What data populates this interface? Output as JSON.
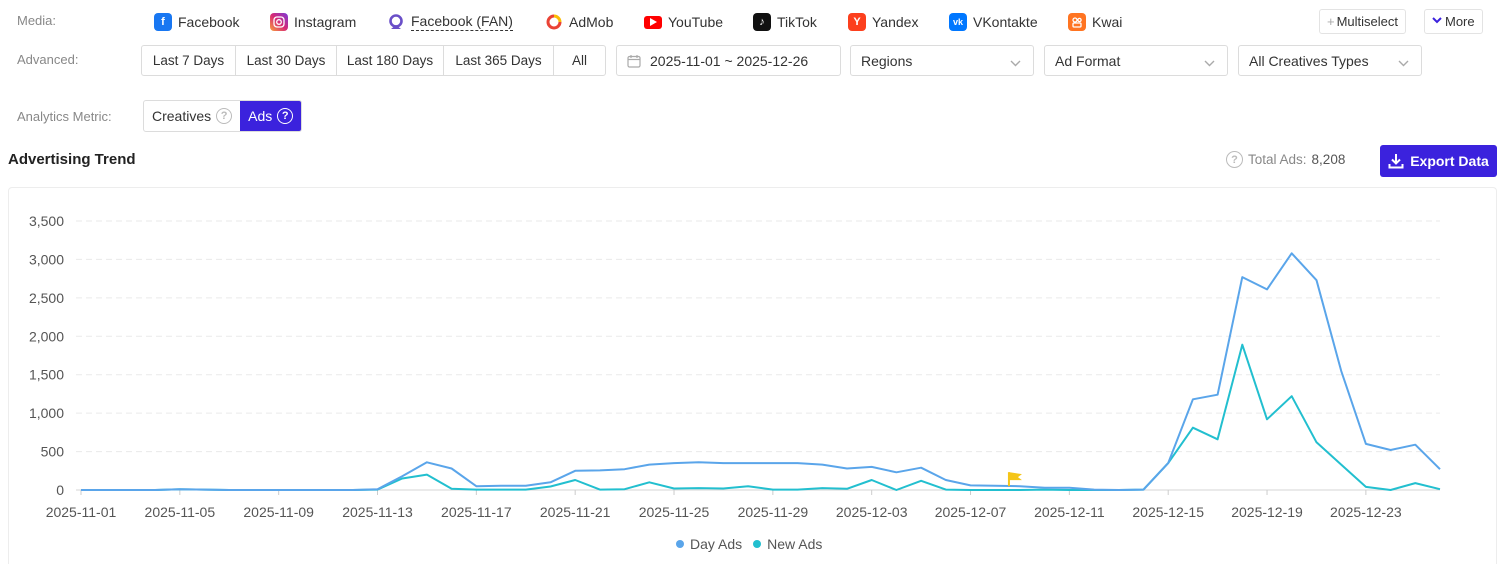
{
  "filters": {
    "media_label": "Media:",
    "advanced_label": "Advanced:",
    "metric_label": "Analytics Metric:"
  },
  "media": [
    {
      "label": "Facebook",
      "icon": "facebook-icon",
      "color": "#1877f2"
    },
    {
      "label": "Instagram",
      "icon": "instagram-icon",
      "color": "#d62976"
    },
    {
      "label": "Facebook (FAN)",
      "icon": "facebook-fan-icon",
      "color": "#6a4fc8"
    },
    {
      "label": "AdMob",
      "icon": "admob-icon",
      "color": "#ea4335"
    },
    {
      "label": "YouTube",
      "icon": "youtube-icon",
      "color": "#ff0000"
    },
    {
      "label": "TikTok",
      "icon": "tiktok-icon",
      "color": "#111111"
    },
    {
      "label": "Yandex",
      "icon": "yandex-icon",
      "color": "#fc3f1d"
    },
    {
      "label": "VKontakte",
      "icon": "vkontakte-icon",
      "color": "#0077ff"
    },
    {
      "label": "Kwai",
      "icon": "kwai-icon",
      "color": "#ff7421"
    }
  ],
  "top_buttons": {
    "multiselect": "Multiselect",
    "more": "More"
  },
  "day_ranges": [
    "Last 7 Days",
    "Last 30 Days",
    "Last 180 Days",
    "Last 365 Days",
    "All"
  ],
  "date_range": "2025-11-01 ~ 2025-12-26",
  "dropdowns": {
    "regions": "Regions",
    "ad_format": "Ad Format",
    "creatives_types": "All Creatives Types"
  },
  "metric_tabs": {
    "creatives": "Creatives",
    "ads": "Ads",
    "selected": "Ads"
  },
  "section_title": "Advertising Trend",
  "total_label": "Total Ads:",
  "total_value": "8,208",
  "export_label": "Export Data",
  "colors": {
    "accent": "#3b22dd",
    "day_ads": "#5aa5ea",
    "new_ads": "#22bfcf",
    "flag": "#f5c518"
  },
  "chart_data": {
    "type": "line",
    "x": [
      "2025-11-01",
      "2025-11-02",
      "2025-11-03",
      "2025-11-04",
      "2025-11-05",
      "2025-11-06",
      "2025-11-07",
      "2025-11-08",
      "2025-11-09",
      "2025-11-10",
      "2025-11-11",
      "2025-11-12",
      "2025-11-13",
      "2025-11-14",
      "2025-11-15",
      "2025-11-16",
      "2025-11-17",
      "2025-11-18",
      "2025-11-19",
      "2025-11-20",
      "2025-11-21",
      "2025-11-22",
      "2025-11-23",
      "2025-11-24",
      "2025-11-25",
      "2025-11-26",
      "2025-11-27",
      "2025-11-28",
      "2025-11-29",
      "2025-11-30",
      "2025-12-01",
      "2025-12-02",
      "2025-12-03",
      "2025-12-04",
      "2025-12-05",
      "2025-12-06",
      "2025-12-07",
      "2025-12-08",
      "2025-12-09",
      "2025-12-10",
      "2025-12-11",
      "2025-12-12",
      "2025-12-13",
      "2025-12-14",
      "2025-12-15",
      "2025-12-16",
      "2025-12-17",
      "2025-12-18",
      "2025-12-19",
      "2025-12-20",
      "2025-12-21",
      "2025-12-22",
      "2025-12-23",
      "2025-12-24",
      "2025-12-25",
      "2025-12-26"
    ],
    "x_ticks": [
      "2025-11-01",
      "2025-11-05",
      "2025-11-09",
      "2025-11-13",
      "2025-11-17",
      "2025-11-21",
      "2025-11-25",
      "2025-11-29",
      "2025-12-03",
      "2025-12-07",
      "2025-12-11",
      "2025-12-15",
      "2025-12-19",
      "2025-12-23"
    ],
    "series": [
      {
        "name": "Day Ads",
        "values": [
          0,
          0,
          0,
          0,
          10,
          5,
          0,
          0,
          0,
          0,
          0,
          0,
          10,
          180,
          360,
          280,
          50,
          55,
          55,
          100,
          250,
          255,
          270,
          330,
          350,
          360,
          350,
          350,
          350,
          350,
          330,
          280,
          300,
          230,
          290,
          130,
          60,
          55,
          50,
          30,
          30,
          5,
          0,
          5,
          350,
          1180,
          1240,
          2770,
          2610,
          3080,
          2730,
          1550,
          600,
          520,
          590,
          270
        ]
      },
      {
        "name": "New Ads",
        "values": [
          0,
          0,
          0,
          0,
          10,
          5,
          0,
          0,
          0,
          0,
          0,
          0,
          5,
          150,
          200,
          15,
          5,
          5,
          5,
          45,
          130,
          5,
          10,
          100,
          20,
          25,
          20,
          50,
          5,
          5,
          25,
          15,
          130,
          0,
          120,
          5,
          0,
          0,
          0,
          5,
          0,
          0,
          0,
          5,
          350,
          810,
          660,
          1890,
          920,
          1220,
          620,
          330,
          40,
          0,
          90,
          10
        ]
      }
    ],
    "y_ticks": [
      "0",
      "500",
      "1,000",
      "1,500",
      "2,000",
      "2,500",
      "3,000",
      "3,500"
    ],
    "ylim": [
      0,
      3500
    ],
    "grid": true,
    "legend": "bottom-center",
    "annotation": {
      "type": "flag",
      "x": "2025-12-09"
    }
  }
}
